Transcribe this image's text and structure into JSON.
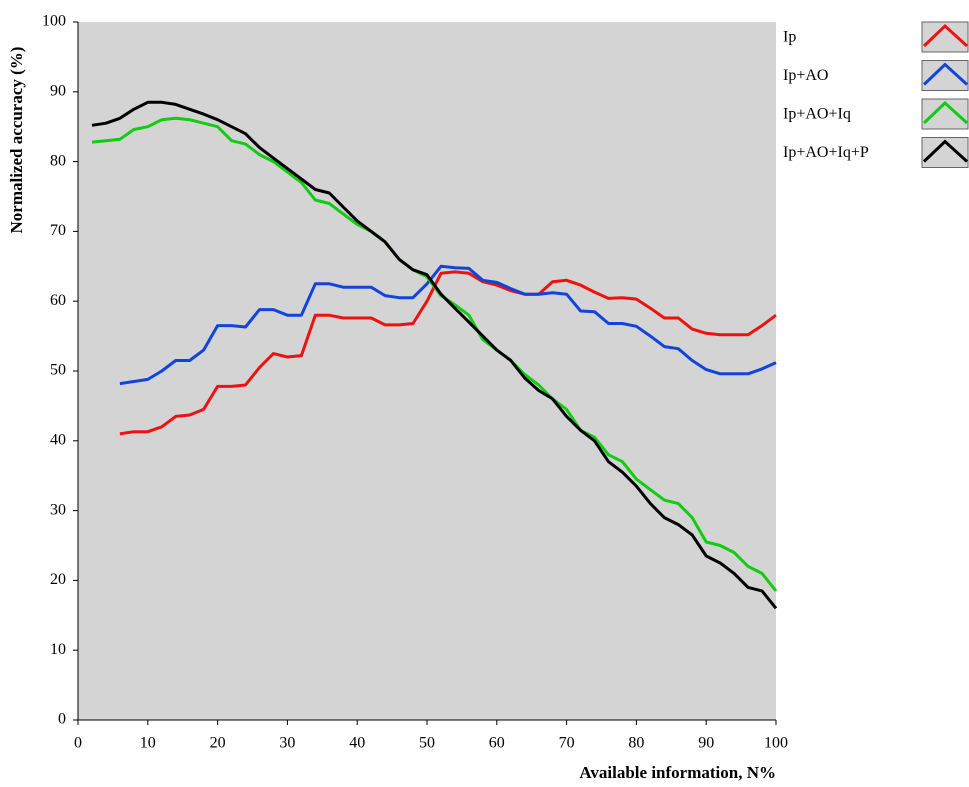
{
  "chart_data": {
    "type": "line",
    "x_label": "Available information, N%",
    "y_label": "Normalized accuracy (%)",
    "x": [
      2,
      4,
      6,
      8,
      10,
      12,
      14,
      16,
      18,
      20,
      22,
      24,
      26,
      28,
      30,
      32,
      34,
      36,
      38,
      40,
      42,
      44,
      46,
      48,
      50,
      52,
      54,
      56,
      58,
      60,
      62,
      64,
      66,
      68,
      70,
      72,
      74,
      76,
      78,
      80,
      82,
      84,
      86,
      88,
      90,
      92,
      94,
      96,
      98,
      100
    ],
    "series": [
      {
        "name": "Ip",
        "color": "#ee1111",
        "values": [
          null,
          null,
          41,
          41.3,
          41.3,
          42,
          43.5,
          43.7,
          44.5,
          47.8,
          47.8,
          48,
          50.5,
          52.5,
          52,
          52.2,
          58,
          58,
          57.6,
          57.6,
          57.6,
          56.6,
          56.6,
          56.8,
          60,
          64,
          64.2,
          64,
          62.8,
          62.3,
          61.5,
          61,
          61,
          62.8,
          63,
          62.3,
          61.3,
          60.4,
          60.5,
          60.3,
          59,
          57.6,
          57.6,
          56,
          55.4,
          55.2,
          55.2,
          55.2,
          56.5,
          58
        ]
      },
      {
        "name": "Ip+AO",
        "color": "#1144dd",
        "values": [
          null,
          null,
          48.2,
          48.5,
          48.8,
          50,
          51.5,
          51.5,
          53,
          56.5,
          56.5,
          56.3,
          58.8,
          58.8,
          58,
          58,
          62.5,
          62.5,
          62,
          62,
          62,
          60.8,
          60.5,
          60.5,
          62.5,
          65,
          64.8,
          64.7,
          63,
          62.7,
          61.8,
          61,
          61,
          61.2,
          61,
          58.6,
          58.5,
          56.8,
          56.8,
          56.4,
          55,
          53.5,
          53.2,
          51.5,
          50.2,
          49.6,
          49.6,
          49.6,
          50.3,
          51.2
        ]
      },
      {
        "name": "Ip+AO+Iq",
        "color": "#11cc11",
        "values": [
          82.8,
          83,
          83.2,
          84.6,
          85,
          86,
          86.2,
          86,
          85.5,
          85,
          83,
          82.5,
          81,
          80,
          78.5,
          77,
          74.5,
          74,
          72.5,
          71,
          70,
          68.5,
          66,
          64.5,
          63.5,
          60.8,
          59.5,
          58,
          54.5,
          53,
          51.5,
          49.5,
          48,
          46,
          44.5,
          41.5,
          40.5,
          38,
          37,
          34.5,
          33,
          31.5,
          31,
          29,
          25.5,
          25,
          24,
          22,
          21,
          18.5
        ]
      },
      {
        "name": "Ip+AO+Iq+P",
        "color": "#000000",
        "values": [
          85.2,
          85.5,
          86.2,
          87.5,
          88.5,
          88.5,
          88.2,
          87.5,
          86.8,
          86,
          85,
          84,
          82,
          80.5,
          79,
          77.5,
          76,
          75.5,
          73.5,
          71.5,
          70,
          68.5,
          66,
          64.5,
          63.8,
          61,
          59,
          57,
          55,
          53,
          51.5,
          49,
          47.2,
          46,
          43.5,
          41.5,
          40,
          37,
          35.5,
          33.5,
          31,
          29,
          28,
          26.5,
          23.5,
          22.5,
          21,
          19,
          18.5,
          16
        ]
      }
    ],
    "xlim": [
      0,
      100
    ],
    "xticks": [
      0,
      10,
      20,
      30,
      40,
      50,
      60,
      70,
      80,
      90,
      100
    ],
    "ylim": [
      0,
      100
    ],
    "yticks": [
      0,
      10,
      20,
      30,
      40,
      50,
      60,
      70,
      80,
      90,
      100
    ],
    "plot_background": "#d4d4d4"
  }
}
